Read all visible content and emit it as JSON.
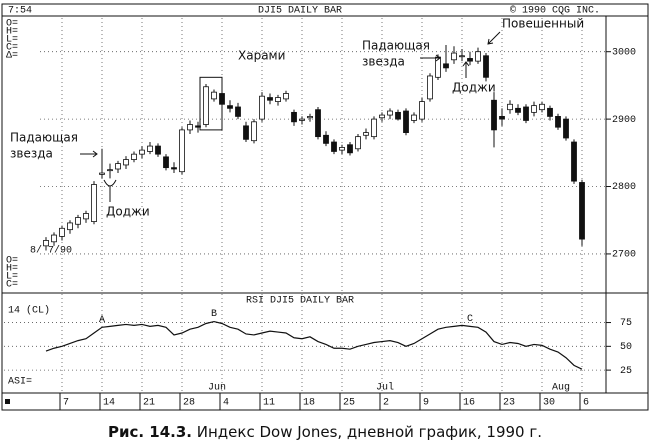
{
  "caption": {
    "label": "Рис. 14.3.",
    "text": "Индекс Dow Jones, дневной график, 1990 г."
  },
  "chart_data": [
    {
      "type": "candlestick",
      "title": "DJI5 DAILY BAR",
      "time": "7:54",
      "copyright": "© 1990 CQG INC.",
      "date_label": "8/ 7/90",
      "info_labels": [
        "O=",
        "H=",
        "L=",
        "C=",
        "Δ="
      ],
      "lower_info_labels": [
        "O=",
        "H=",
        "L=",
        "C="
      ],
      "categories": [
        null,
        null,
        "7",
        null,
        null,
        null,
        null,
        "14",
        null,
        null,
        null,
        null,
        "21",
        null,
        null,
        null,
        null,
        "28",
        null,
        null,
        null,
        null,
        "4",
        null,
        null,
        null,
        null,
        "11",
        null,
        null,
        null,
        null,
        "18",
        null,
        null,
        null,
        null,
        "25",
        null,
        null,
        null,
        null,
        "2",
        null,
        null,
        null,
        null,
        "9",
        null,
        null,
        null,
        null,
        "16",
        null,
        null,
        null,
        null,
        "23",
        null,
        null,
        null,
        null,
        "30",
        null,
        null,
        null,
        null,
        "6"
      ],
      "month_labels": [
        "Jun",
        "Jul",
        "Aug"
      ],
      "open": [
        2712,
        2718,
        2726,
        2736,
        2744,
        2752,
        2748,
        2818,
        2824,
        2826,
        2832,
        2840,
        2848,
        2852,
        2860,
        2844,
        2828,
        2822,
        2884,
        2890,
        2892,
        2930,
        2938,
        2920,
        2918,
        2890,
        2868,
        2900,
        2932,
        2926,
        2930,
        2910,
        2898,
        2902,
        2914,
        2876,
        2866,
        2854,
        2862,
        2856,
        2876,
        2874,
        2902,
        2906,
        2910,
        2912,
        2898,
        2900,
        2930,
        2962,
        2982,
        2988,
        2994,
        2990,
        2986,
        2994,
        2928,
        2904,
        2914,
        2916,
        2918,
        2910,
        2914,
        2916,
        2904,
        2900,
        2866,
        2806
      ],
      "high": [
        2725,
        2732,
        2742,
        2750,
        2758,
        2764,
        2808,
        2856,
        2834,
        2838,
        2845,
        2852,
        2860,
        2866,
        2864,
        2848,
        2836,
        2888,
        2898,
        2896,
        2952,
        2944,
        2942,
        2928,
        2924,
        2896,
        2900,
        2940,
        2938,
        2936,
        2942,
        2914,
        2904,
        2908,
        2918,
        2882,
        2870,
        2862,
        2866,
        2878,
        2886,
        2904,
        2910,
        2916,
        2914,
        2916,
        2910,
        2932,
        2968,
        2996,
        3010,
        3008,
        3004,
        3000,
        3006,
        2998,
        2940,
        2916,
        2928,
        2922,
        2922,
        2926,
        2926,
        2920,
        2908,
        2904,
        2870,
        2810
      ],
      "low": [
        2705,
        2712,
        2720,
        2730,
        2738,
        2746,
        2744,
        2812,
        2812,
        2820,
        2826,
        2836,
        2842,
        2848,
        2844,
        2824,
        2820,
        2818,
        2878,
        2880,
        2888,
        2926,
        2918,
        2910,
        2900,
        2866,
        2864,
        2896,
        2922,
        2920,
        2926,
        2890,
        2892,
        2896,
        2870,
        2860,
        2848,
        2848,
        2846,
        2852,
        2870,
        2870,
        2896,
        2900,
        2898,
        2876,
        2894,
        2896,
        2926,
        2958,
        2970,
        2982,
        2986,
        2980,
        2982,
        2956,
        2858,
        2890,
        2908,
        2906,
        2894,
        2904,
        2910,
        2898,
        2884,
        2868,
        2804,
        2712
      ],
      "close": [
        2720,
        2728,
        2738,
        2746,
        2754,
        2760,
        2803,
        2820,
        2825,
        2834,
        2840,
        2848,
        2854,
        2860,
        2848,
        2828,
        2826,
        2884,
        2892,
        2888,
        2948,
        2940,
        2922,
        2916,
        2904,
        2870,
        2896,
        2934,
        2928,
        2932,
        2938,
        2896,
        2900,
        2904,
        2874,
        2864,
        2852,
        2858,
        2850,
        2874,
        2880,
        2900,
        2906,
        2912,
        2900,
        2880,
        2906,
        2926,
        2964,
        2992,
        2976,
        2998,
        2994,
        2986,
        3000,
        2962,
        2884,
        2900,
        2922,
        2910,
        2898,
        2920,
        2922,
        2904,
        2888,
        2872,
        2808,
        2722
      ],
      "up_color": "#ffffff",
      "down_color": "#111111",
      "ylim": [
        2645,
        3050
      ],
      "yticks": [
        2700,
        2800,
        2900,
        3000
      ],
      "grid": true,
      "annotations": [
        [
          "Падающая",
          "звезда"
        ],
        [
          "Доджи"
        ],
        [
          "Харами"
        ],
        [
          "Падающая",
          "звезда"
        ],
        [
          "Доджи"
        ],
        [
          "Повешенный"
        ]
      ]
    },
    {
      "type": "line",
      "title": "RSI DJI5 DAILY BAR",
      "subtitle": "14 (CL)",
      "label": "ASI=",
      "values": [
        45,
        48,
        50,
        53,
        56,
        58,
        64,
        70,
        71,
        72,
        73,
        72,
        73,
        71,
        72,
        70,
        62,
        64,
        68,
        70,
        74,
        76,
        74,
        70,
        68,
        63,
        62,
        64,
        66,
        65,
        64,
        59,
        58,
        60,
        55,
        52,
        48,
        48,
        47,
        50,
        52,
        54,
        55,
        56,
        54,
        50,
        53,
        58,
        63,
        68,
        70,
        71,
        72,
        71,
        70,
        65,
        55,
        52,
        54,
        53,
        50,
        52,
        51,
        47,
        44,
        38,
        30,
        26
      ],
      "color": "#111111",
      "ylim": [
        2,
        105
      ],
      "yticks": [
        25,
        50,
        75
      ],
      "grid": true,
      "annotations": [
        "A",
        "B",
        "C"
      ]
    }
  ]
}
